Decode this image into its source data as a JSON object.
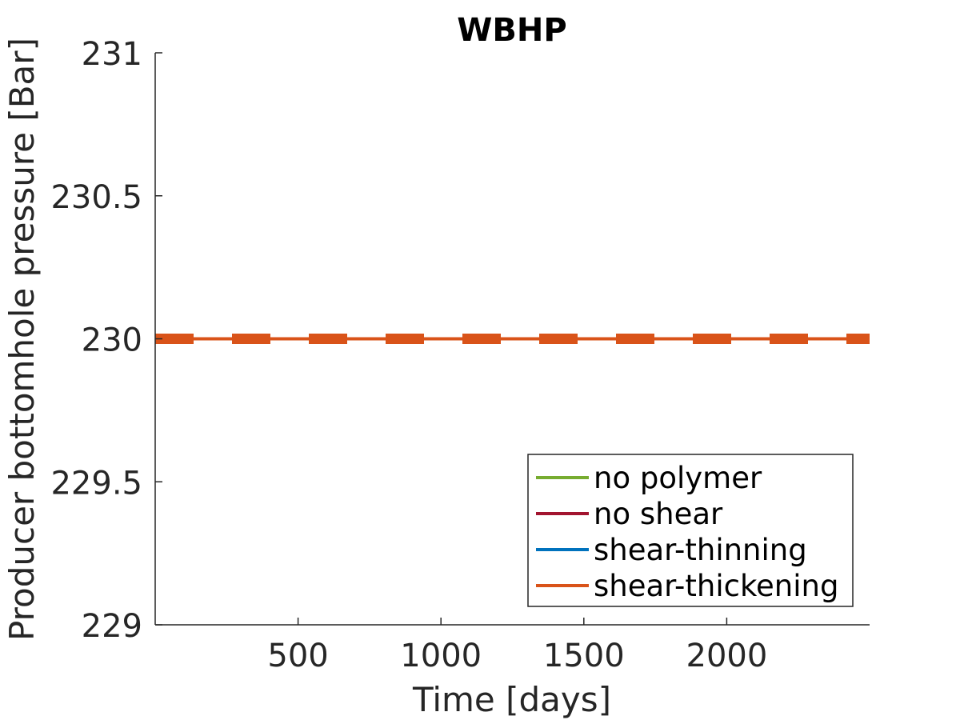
{
  "chart_data": {
    "type": "line",
    "title": "WBHP",
    "xlabel": "Time [days]",
    "ylabel": "Producer bottomhole pressure [Bar]",
    "xlim": [
      0,
      2500
    ],
    "ylim": [
      229,
      231
    ],
    "xticks": [
      500,
      1000,
      1500,
      2000
    ],
    "xtick_labels": [
      "500",
      "1000",
      "1500",
      "2000"
    ],
    "yticks": [
      229,
      229.5,
      230,
      230.5,
      231
    ],
    "ytick_labels": [
      "229",
      "229.5",
      "230",
      "230.5",
      "231"
    ],
    "grid": false,
    "legend_position": "bottom-right",
    "x": [
      0,
      2500
    ],
    "series": [
      {
        "name": "no polymer",
        "values": [
          230,
          230
        ],
        "color": "#77AC30",
        "style": "solid"
      },
      {
        "name": "no shear",
        "values": [
          230,
          230
        ],
        "color": "#A2142F",
        "style": "solid"
      },
      {
        "name": "shear-thinning",
        "values": [
          230,
          230
        ],
        "color": "#0072BD",
        "style": "solid"
      },
      {
        "name": "shear-thickening",
        "values": [
          230,
          230
        ],
        "color": "#D95319",
        "style": "solid"
      },
      {
        "name": "",
        "values": [
          230,
          230
        ],
        "color": "#D95319",
        "style": "dashed"
      }
    ]
  }
}
